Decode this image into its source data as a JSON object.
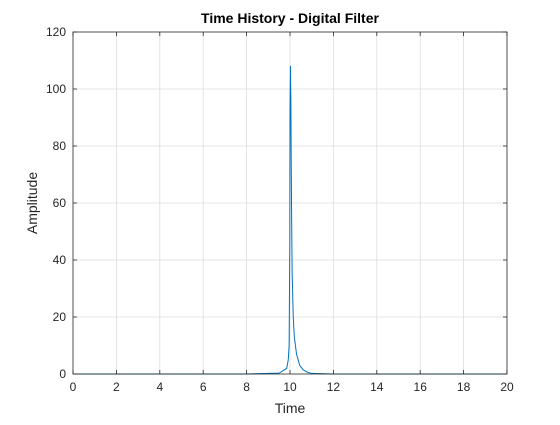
{
  "chart_data": {
    "type": "line",
    "title": "Time History - Digital Filter",
    "xlabel": "Time",
    "ylabel": "Amplitude",
    "xlim": [
      0,
      20
    ],
    "ylim": [
      0,
      120
    ],
    "x_ticks": [
      0,
      2,
      4,
      6,
      8,
      10,
      12,
      14,
      16,
      18,
      20
    ],
    "y_ticks": [
      0,
      20,
      40,
      60,
      80,
      100,
      120
    ],
    "grid": true,
    "legend": "none",
    "colors": {
      "line": "#0072BD",
      "grid": "#dcdcdc",
      "axes": "#262626"
    },
    "series": [
      {
        "x": [
          0,
          2,
          4,
          6,
          8,
          9.5,
          9.85,
          9.92,
          9.96,
          9.99,
          10.0,
          10.02,
          10.04,
          10.06,
          10.08,
          10.1,
          10.15,
          10.2,
          10.3,
          10.45,
          10.6,
          10.8,
          11.0,
          12,
          14,
          16,
          18,
          20
        ],
        "y": [
          0,
          0,
          0,
          0,
          0,
          0.3,
          2,
          5,
          10,
          45,
          93,
          108,
          95,
          70,
          50,
          35,
          20,
          13,
          7,
          3,
          1.5,
          0.6,
          0.2,
          0,
          0,
          0,
          0,
          0
        ]
      }
    ]
  }
}
